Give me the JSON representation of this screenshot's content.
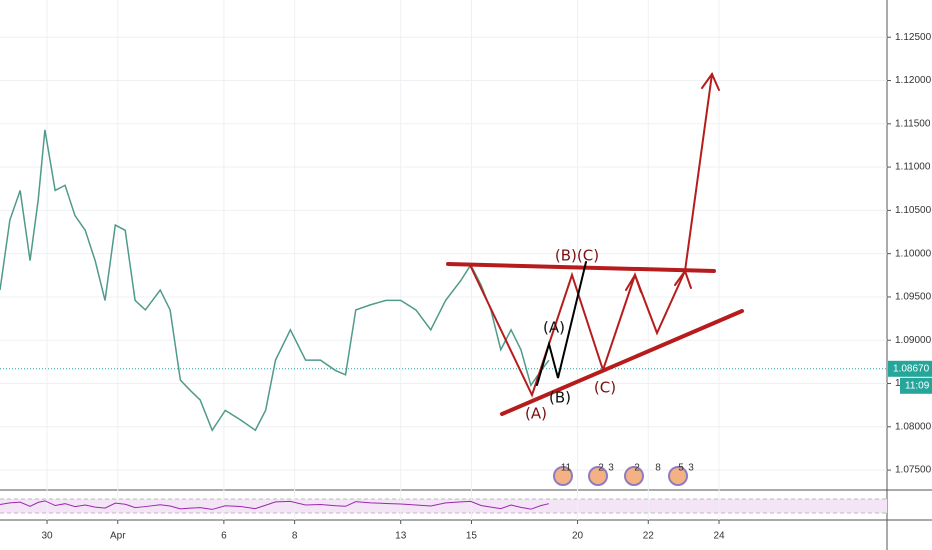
{
  "chart_data": {
    "type": "line",
    "x": [
      -1.33,
      -1.05,
      -0.76,
      -0.48,
      -0.25,
      -0.06,
      0.23,
      0.51,
      0.79,
      1.08,
      1.36,
      1.64,
      1.93,
      2.21,
      2.49,
      2.78,
      3.2,
      3.48,
      3.77,
      4.05,
      4.33,
      4.67,
      5.04,
      5.47,
      5.89,
      6.18,
      6.46,
      6.88,
      7.31,
      7.73,
      8.16,
      8.44,
      8.73,
      9.15,
      9.58,
      10,
      10.43,
      10.85,
      11.27,
      11.7,
      11.98,
      12.27,
      12.55,
      12.83,
      13.12,
      13.4,
      13.68,
      13.97,
      14.19
    ],
    "values": [
      1.0958,
      1.1039,
      1.1073,
      1.0992,
      1.1062,
      1.1143,
      1.1073,
      1.1079,
      1.1044,
      1.1027,
      1.0992,
      1.0946,
      1.1033,
      1.1027,
      1.0946,
      1.0935,
      1.0958,
      1.0935,
      1.0854,
      1.0842,
      1.0831,
      1.0796,
      1.0819,
      1.0808,
      1.0796,
      1.0819,
      1.0877,
      1.0912,
      1.0877,
      1.0877,
      1.0865,
      1.086,
      1.0935,
      1.0941,
      1.0946,
      1.0946,
      1.0935,
      1.0912,
      1.0946,
      1.0969,
      1.0987,
      1.0964,
      1.0935,
      1.0889,
      1.0912,
      1.0889,
      1.0848,
      1.0865,
      1.0877
    ],
    "color": "#4f9a8a",
    "xlim": [
      -1.33,
      23.75
    ],
    "xticks": [
      {
        "value": 0,
        "label": "30"
      },
      {
        "value": 2,
        "label": "Apr"
      },
      {
        "value": 5,
        "label": "6"
      },
      {
        "value": 7,
        "label": "8"
      },
      {
        "value": 10,
        "label": "13"
      },
      {
        "value": 12,
        "label": "15"
      },
      {
        "value": 15,
        "label": "20"
      },
      {
        "value": 17,
        "label": "22"
      },
      {
        "value": 19,
        "label": "24"
      }
    ],
    "ylim": [
      1.0727,
      1.1293
    ],
    "yticks": [
      {
        "value": 1.075,
        "label": "1.07500"
      },
      {
        "value": 1.08,
        "label": "1.08000"
      },
      {
        "value": 1.085,
        "label": "1.08500"
      },
      {
        "value": 1.09,
        "label": "1.09000"
      },
      {
        "value": 1.095,
        "label": "1.09500"
      },
      {
        "value": 1.1,
        "label": "1.10000"
      },
      {
        "value": 1.105,
        "label": "1.10500"
      },
      {
        "value": 1.11,
        "label": "1.11000"
      },
      {
        "value": 1.115,
        "label": "1.11500"
      },
      {
        "value": 1.12,
        "label": "1.12000"
      },
      {
        "value": 1.125,
        "label": "1.12500"
      }
    ],
    "grid": true,
    "last_price": {
      "value": 1.0867,
      "label": "1.08670"
    },
    "countdown": "11:09",
    "wave_labels": [
      "(B)(C)",
      "(A)",
      "(A)",
      "(B)",
      "(C)"
    ],
    "events": [
      "11",
      "2",
      "3",
      "2",
      "8",
      "5",
      "3"
    ],
    "rsi": {
      "values": [
        52,
        58,
        61,
        45,
        60,
        66,
        48,
        55,
        44,
        50,
        42,
        38,
        57,
        53,
        40,
        44,
        51,
        46,
        35,
        38,
        40,
        33,
        47,
        44,
        36,
        49,
        62,
        64,
        50,
        52,
        47,
        45,
        63,
        58,
        56,
        54,
        50,
        46,
        58,
        62,
        64,
        48,
        42,
        36,
        50,
        41,
        34,
        48,
        55
      ],
      "color": "#9c27b0",
      "ylim": [
        0,
        100
      ]
    }
  }
}
